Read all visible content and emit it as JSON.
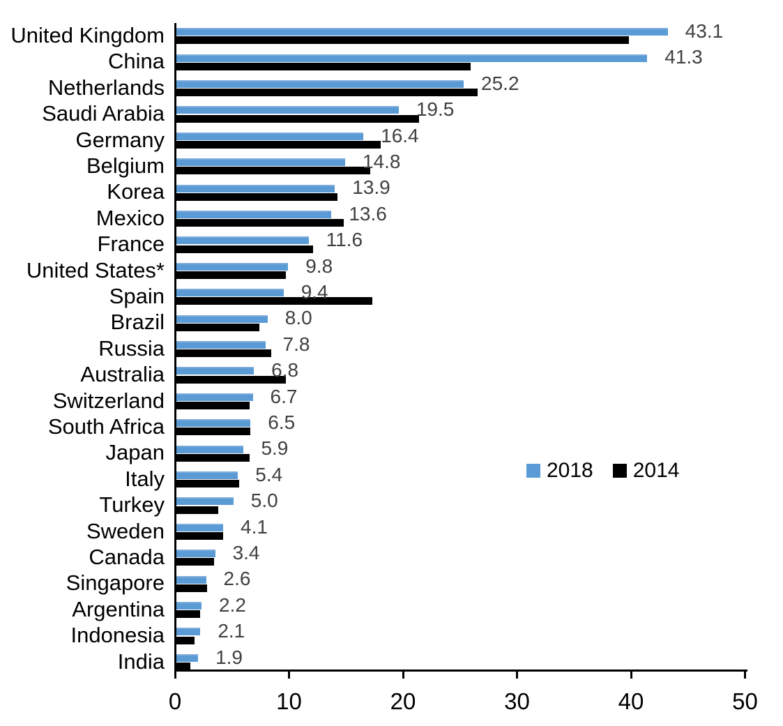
{
  "chart_data": {
    "type": "bar",
    "orientation": "horizontal",
    "title": "",
    "xlabel": "",
    "ylabel": "",
    "xlim": [
      0,
      50
    ],
    "x_ticks": [
      "0",
      "10",
      "20",
      "30",
      "40",
      "50"
    ],
    "grid": "off",
    "legend_position": "middle-right",
    "categories": [
      "United Kingdom",
      "China",
      "Netherlands",
      "Saudi Arabia",
      "Germany",
      "Belgium",
      "Korea",
      "Mexico",
      "France",
      "United States*",
      "Spain",
      "Brazil",
      "Russia",
      "Australia",
      "Switzerland",
      "South Africa",
      "Japan",
      "Italy",
      "Turkey",
      "Sweden",
      "Canada",
      "Singapore",
      "Argentina",
      "Indonesia",
      "India"
    ],
    "series": [
      {
        "name": "2018",
        "color": "#5b9bd5",
        "values": [
          43.1,
          41.3,
          25.2,
          19.5,
          16.4,
          14.8,
          13.9,
          13.6,
          11.6,
          9.8,
          9.4,
          8.0,
          7.8,
          6.8,
          6.7,
          6.5,
          5.9,
          5.4,
          5.0,
          4.1,
          3.4,
          2.6,
          2.2,
          2.1,
          1.9
        ]
      },
      {
        "name": "2014",
        "color": "#000000",
        "values": [
          39.7,
          25.8,
          26.4,
          21.3,
          17.9,
          17.0,
          14.1,
          14.7,
          12.0,
          9.6,
          17.2,
          7.3,
          8.3,
          9.6,
          6.4,
          6.5,
          6.4,
          5.5,
          3.7,
          4.1,
          3.3,
          2.7,
          2.1,
          1.6,
          1.2
        ]
      }
    ],
    "value_labels": [
      "43.1",
      "41.3",
      "25.2",
      "19.5",
      "16.4",
      "14.8",
      "13.9",
      "13.6",
      "11.6",
      "9.8",
      "9.4",
      "8.0",
      "7.8",
      "6.8",
      "6.7",
      "6.5",
      "5.9",
      "5.4",
      "5.0",
      "4.1",
      "3.4",
      "2.6",
      "2.2",
      "2.1",
      "1.9"
    ],
    "value_labels_series": "2018",
    "value_label_color": "#404040",
    "axis_color": "#000000"
  }
}
